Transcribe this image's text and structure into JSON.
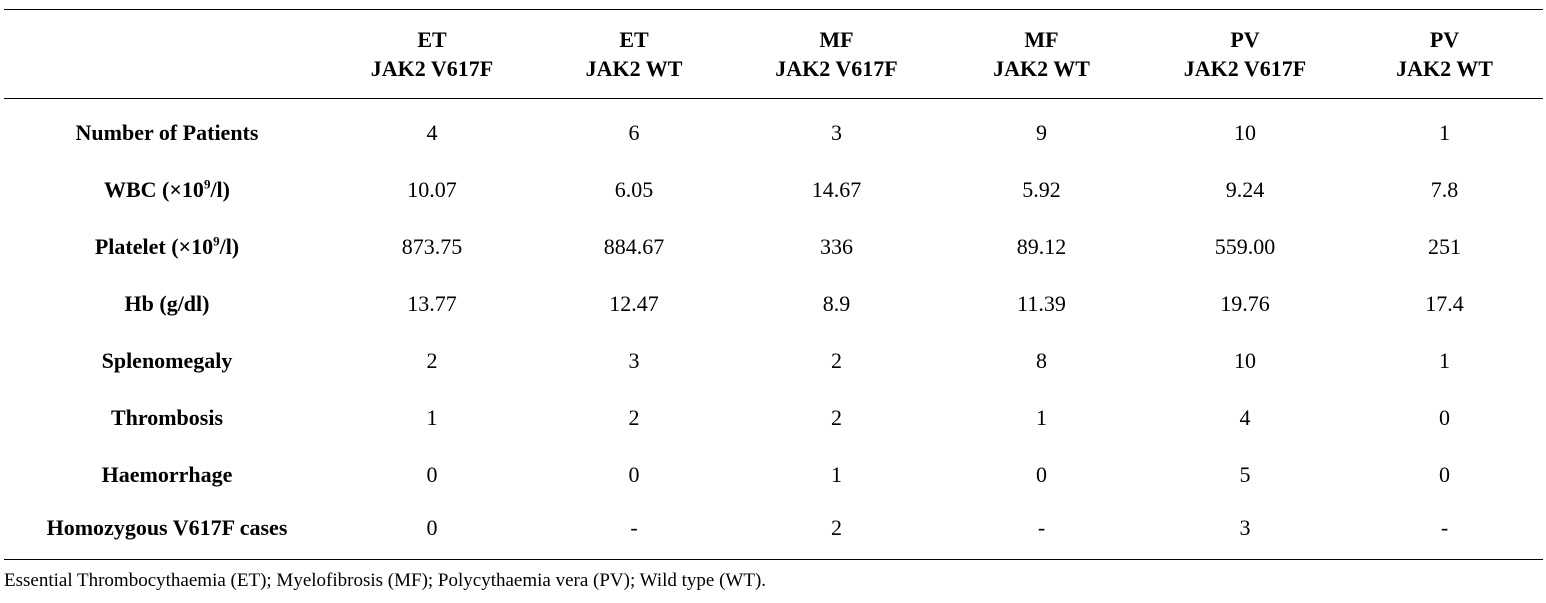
{
  "table": {
    "columns": [
      {
        "line1": "",
        "line2": ""
      },
      {
        "line1": "ET",
        "line2": "JAK2 V617F"
      },
      {
        "line1": "ET",
        "line2": "JAK2 WT"
      },
      {
        "line1": "MF",
        "line2": "JAK2 V617F"
      },
      {
        "line1": "MF",
        "line2": "JAK2 WT"
      },
      {
        "line1": "PV",
        "line2": "JAK2 V617F"
      },
      {
        "line1": "PV",
        "line2": "JAK2 WT"
      }
    ],
    "rows": [
      {
        "label": "Number of Patients",
        "label_pre": "",
        "label_sup": "",
        "label_post": "",
        "values": [
          "4",
          "6",
          "3",
          "9",
          "10",
          "1"
        ]
      },
      {
        "label": "",
        "label_pre": "WBC (×10",
        "label_sup": "9",
        "label_post": "/l)",
        "values": [
          "10.07",
          "6.05",
          "14.67",
          "5.92",
          "9.24",
          "7.8"
        ]
      },
      {
        "label": "",
        "label_pre": "Platelet (×10",
        "label_sup": "9",
        "label_post": "/l)",
        "values": [
          "873.75",
          "884.67",
          "336",
          "89.12",
          "559.00",
          "251"
        ]
      },
      {
        "label": "Hb (g/dl)",
        "label_pre": "",
        "label_sup": "",
        "label_post": "",
        "values": [
          "13.77",
          "12.47",
          "8.9",
          "11.39",
          "19.76",
          "17.4"
        ]
      },
      {
        "label": "Splenomegaly",
        "label_pre": "",
        "label_sup": "",
        "label_post": "",
        "values": [
          "2",
          "3",
          "2",
          "8",
          "10",
          "1"
        ]
      },
      {
        "label": "Thrombosis",
        "label_pre": "",
        "label_sup": "",
        "label_post": "",
        "values": [
          "1",
          "2",
          "2",
          "1",
          "4",
          "0"
        ]
      },
      {
        "label": "Haemorrhage",
        "label_pre": "",
        "label_sup": "",
        "label_post": "",
        "values": [
          "0",
          "0",
          "1",
          "0",
          "5",
          "0"
        ]
      },
      {
        "label": "Homozygous V617F cases",
        "label_pre": "",
        "label_sup": "",
        "label_post": "",
        "values": [
          "0",
          "-",
          "2",
          "-",
          "3",
          "-"
        ]
      }
    ]
  },
  "footnote": "Essential Thrombocythaemia (ET); Myelofibrosis (MF); Polycythaemia vera (PV); Wild type (WT)."
}
